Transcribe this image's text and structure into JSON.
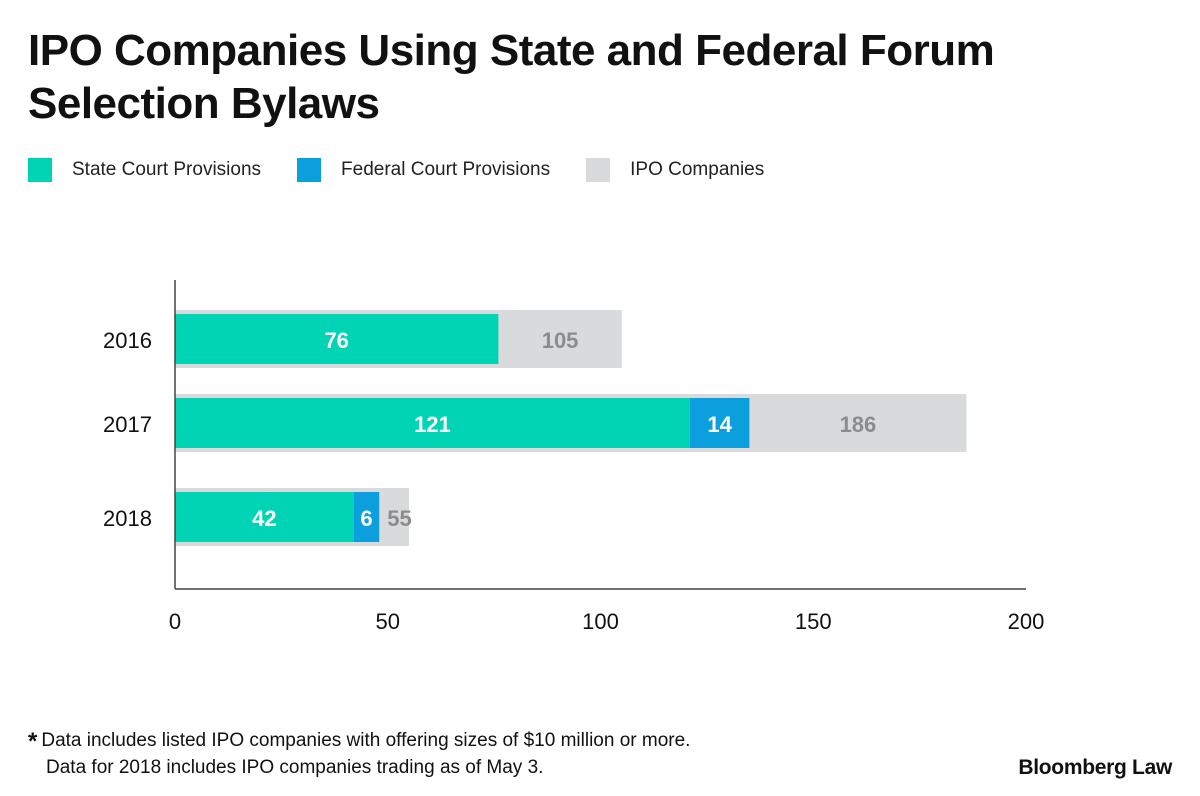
{
  "title_lines": [
    "IPO Companies Using State and Federal Forum",
    "Selection Bylaws"
  ],
  "legend": [
    {
      "label": "State Court Provisions",
      "color": "#00D4B4"
    },
    {
      "label": "Federal Court Provisions",
      "color": "#0C9FDE"
    },
    {
      "label": "IPO Companies",
      "color": "#D9DADC"
    }
  ],
  "footnote": {
    "marker": "*",
    "line1": "Data includes listed IPO companies with offering sizes of $10 million or more.",
    "line2": "Data for 2018 includes IPO companies trading as of May 3."
  },
  "brand": "Bloomberg Law",
  "chart_data": {
    "type": "bar",
    "orientation": "horizontal",
    "categories": [
      "2016",
      "2017",
      "2018"
    ],
    "series": [
      {
        "name": "State Court Provisions",
        "values": [
          76,
          121,
          42
        ],
        "color": "#00D4B4",
        "label_color": "#FFFFFF"
      },
      {
        "name": "Federal Court Provisions",
        "values": [
          0,
          14,
          6
        ],
        "color": "#0C9FDE",
        "label_color": "#FFFFFF"
      },
      {
        "name": "IPO Companies",
        "values": [
          105,
          186,
          55
        ],
        "color": "#D9DADC",
        "label_color": "#8C8C8C"
      }
    ],
    "xlim": [
      0,
      200
    ],
    "xticks": [
      0,
      50,
      100,
      150,
      200
    ],
    "xlabel": "",
    "ylabel": "",
    "title": "IPO Companies Using State and Federal Forum Selection Bylaws"
  }
}
